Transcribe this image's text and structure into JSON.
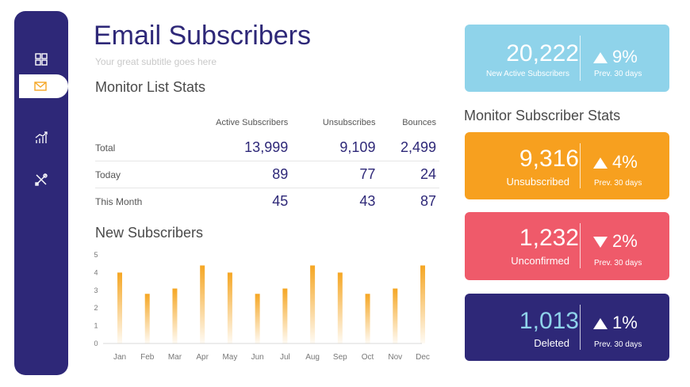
{
  "sidebar": {
    "items": [
      {
        "icon": "dashboard-icon"
      },
      {
        "icon": "mail-icon"
      },
      {
        "icon": "chart-icon"
      },
      {
        "icon": "tools-icon"
      }
    ]
  },
  "header": {
    "title": "Email Subscribers",
    "subtitle": "Your great subtitle goes here"
  },
  "list_stats": {
    "heading": "Monitor List Stats",
    "columns": [
      "Active Subscribers",
      "Unsubscribes",
      "Bounces"
    ],
    "rows": [
      {
        "label": "Total",
        "values": [
          "13,999",
          "9,109",
          "2,499"
        ]
      },
      {
        "label": "Today",
        "values": [
          "89",
          "77",
          "24"
        ]
      },
      {
        "label": "This Month",
        "values": [
          "45",
          "43",
          "87"
        ]
      }
    ]
  },
  "new_subscribers_heading": "New Subscribers",
  "chart_data": {
    "type": "bar",
    "categories": [
      "Jan",
      "Feb",
      "Mar",
      "Apr",
      "May",
      "Jun",
      "Jul",
      "Aug",
      "Sep",
      "Oct",
      "Nov",
      "Dec"
    ],
    "values": [
      4,
      2.8,
      3.1,
      4.4,
      4,
      2.8,
      3.1,
      4.4,
      4,
      2.8,
      3.1,
      4.4
    ],
    "ylim": [
      0,
      5
    ],
    "yticks": [
      0,
      1,
      2,
      3,
      4,
      5
    ],
    "color": "#f5a623",
    "grid": false
  },
  "subscriber_stats_heading": "Monitor Subscriber Stats",
  "cards": [
    {
      "value": "20,222",
      "label": "New Active Subscribers",
      "pct": "9%",
      "direction": "up",
      "prev": "Prev. 30 days",
      "color": "#8fd3ea"
    },
    {
      "value": "9,316",
      "label": "Unsubscribed",
      "pct": "4%",
      "direction": "up",
      "prev": "Prev. 30 days",
      "color": "#f7a01f"
    },
    {
      "value": "1,232",
      "label": "Unconfirmed",
      "pct": "2%",
      "direction": "down",
      "prev": "Prev. 30 days",
      "color": "#ef5a6a"
    },
    {
      "value": "1,013",
      "label": "Deleted",
      "pct": "1%",
      "direction": "up",
      "prev": "Prev. 30 days",
      "color": "#2e2878"
    }
  ]
}
